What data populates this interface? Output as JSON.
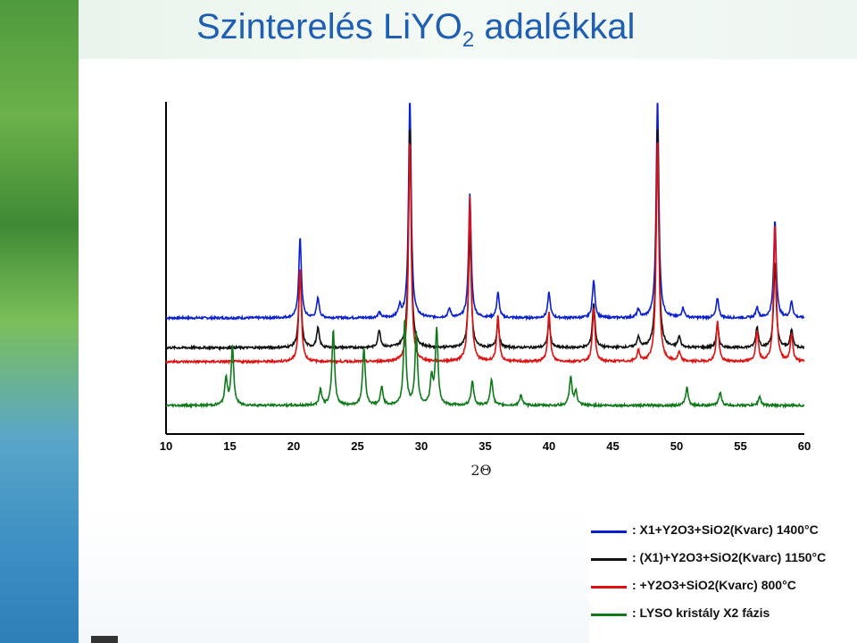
{
  "title": {
    "main": "Szinterelés LiYO",
    "sub": "2",
    "suffix": " adalékkal"
  },
  "chart_data": {
    "type": "line",
    "xlabel": "2Θ",
    "xlim": [
      10,
      60
    ],
    "ticks": [
      "10",
      "15",
      "20",
      "25",
      "30",
      "35",
      "40",
      "45",
      "50",
      "55",
      "60"
    ],
    "tick_values": [
      10,
      15,
      20,
      25,
      30,
      35,
      40,
      45,
      50,
      55,
      60
    ],
    "series": [
      {
        "name": ": X1+Y2O3+SiO2(Kvarc) 1400°C",
        "color": "#0a1fd0",
        "offset": 0.0,
        "peaks": [
          [
            20.5,
            0.9
          ],
          [
            21.9,
            0.22
          ],
          [
            28.3,
            0.12
          ],
          [
            29.1,
            2.5
          ],
          [
            33.8,
            1.4
          ],
          [
            36.0,
            0.28
          ],
          [
            40.0,
            0.28
          ],
          [
            43.5,
            0.42
          ],
          [
            48.5,
            2.5
          ],
          [
            53.2,
            0.22
          ],
          [
            56.3,
            0.12
          ],
          [
            57.7,
            1.1
          ],
          [
            59.0,
            0.18
          ],
          [
            32.2,
            0.1
          ],
          [
            26.7,
            0.06
          ],
          [
            47.0,
            0.09
          ],
          [
            50.5,
            0.11
          ]
        ]
      },
      {
        "name": ": (X1)+Y2O3+SiO2(Kvarc) 1150°C",
        "color": "#111111",
        "offset": 0.34,
        "peaks": [
          [
            20.5,
            0.85
          ],
          [
            21.9,
            0.22
          ],
          [
            26.7,
            0.2
          ],
          [
            29.1,
            2.5
          ],
          [
            33.8,
            1.3
          ],
          [
            36.0,
            0.28
          ],
          [
            40.0,
            0.3
          ],
          [
            43.5,
            0.5
          ],
          [
            48.5,
            2.5
          ],
          [
            53.2,
            0.24
          ],
          [
            56.3,
            0.23
          ],
          [
            57.7,
            0.95
          ],
          [
            59.0,
            0.2
          ],
          [
            47.0,
            0.12
          ],
          [
            50.2,
            0.12
          ]
        ]
      },
      {
        "name": ": +Y2O3+SiO2(Kvarc) 800°C",
        "color": "#e01010",
        "offset": 0.5,
        "peaks": [
          [
            20.5,
            1.05
          ],
          [
            29.1,
            2.5
          ],
          [
            33.8,
            1.85
          ],
          [
            36.0,
            0.5
          ],
          [
            40.0,
            0.55
          ],
          [
            43.5,
            0.6
          ],
          [
            48.5,
            2.5
          ],
          [
            53.2,
            0.45
          ],
          [
            56.3,
            0.35
          ],
          [
            57.7,
            1.55
          ],
          [
            59.0,
            0.3
          ],
          [
            47.0,
            0.12
          ],
          [
            50.2,
            0.1
          ]
        ]
      },
      {
        "name": ": LYSO kristály X2 fázis",
        "color": "#0e7a1a",
        "offset": 1.0,
        "peaks": [
          [
            14.7,
            0.3
          ],
          [
            15.2,
            0.65
          ],
          [
            22.1,
            0.18
          ],
          [
            23.1,
            0.85
          ],
          [
            25.5,
            0.65
          ],
          [
            26.9,
            0.2
          ],
          [
            28.7,
            0.95
          ],
          [
            29.6,
            0.8
          ],
          [
            30.8,
            0.3
          ],
          [
            31.2,
            0.85
          ],
          [
            34.0,
            0.28
          ],
          [
            35.5,
            0.3
          ],
          [
            37.8,
            0.12
          ],
          [
            41.7,
            0.32
          ],
          [
            42.1,
            0.15
          ],
          [
            50.8,
            0.2
          ],
          [
            53.4,
            0.15
          ],
          [
            56.5,
            0.1
          ]
        ]
      }
    ]
  },
  "legend": {
    "items": [
      {
        "label": ": X1+Y2O3+SiO2(Kvarc) 1400°C",
        "color": "#0a1fd0"
      },
      {
        "label": ": (X1)+Y2O3+SiO2(Kvarc) 1150°C",
        "color": "#111111"
      },
      {
        "label": ": +Y2O3+SiO2(Kvarc) 800°C",
        "color": "#e01010"
      },
      {
        "label": ": LYSO kristály X2 fázis",
        "color": "#0e7a1a"
      }
    ]
  }
}
